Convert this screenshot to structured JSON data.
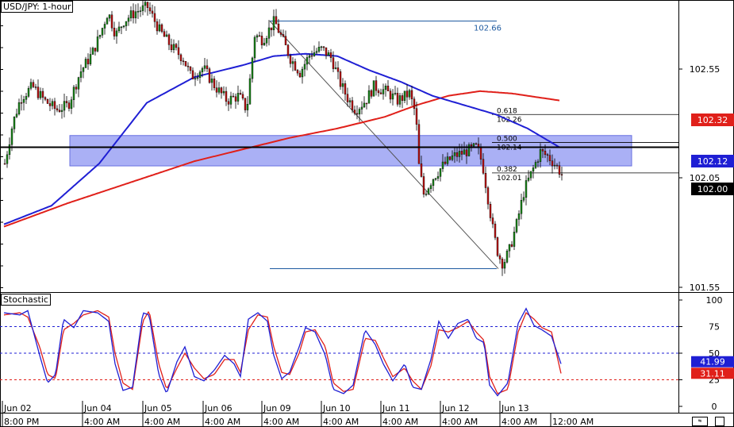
{
  "header": {
    "symbol_label": "USD/JPY: 1-hour"
  },
  "indicator": {
    "label": "Stochastic"
  },
  "colors": {
    "sma_blue": "#1f1fd4",
    "sma_red": "#e0201a",
    "zone_fill": "#aab0f5",
    "fib_line": "#1e5aa0",
    "stoch_k": "#1f1fd4",
    "stoch_d": "#e0201a",
    "level_75": "#1f1fd4",
    "level_50": "#1f1fd4",
    "level_25": "#e0201a",
    "badge_red": "#e0201a",
    "badge_blue": "#1f1fd4",
    "badge_black": "#000000"
  },
  "chart_data": [
    {
      "type": "candlestick",
      "title": "USD/JPY: 1-hour",
      "y_ticks": [
        "102.55",
        "102.05",
        "101.55"
      ],
      "ylim": [
        101.5,
        102.75
      ],
      "x_tick_labels": [
        "Jun 02",
        "Jun 04",
        "Jun 05",
        "Jun 06",
        "Jun 09",
        "Jun 10",
        "Jun 11",
        "Jun 12",
        "Jun 13"
      ],
      "x_tick_sublabels": [
        "8:00 PM",
        "4:00 AM",
        "4:00 AM",
        "4:00 AM",
        "4:00 AM",
        "4:00 AM",
        "4:00 AM",
        "4:00 AM",
        "4:00 AM",
        "12:00 AM"
      ],
      "sma_blue": [
        [
          0,
          101.79
        ],
        [
          60,
          101.87
        ],
        [
          120,
          102.05
        ],
        [
          180,
          102.31
        ],
        [
          240,
          102.42
        ],
        [
          300,
          102.47
        ],
        [
          340,
          102.51
        ],
        [
          380,
          102.52
        ],
        [
          420,
          102.51
        ],
        [
          460,
          102.45
        ],
        [
          500,
          102.4
        ],
        [
          540,
          102.34
        ],
        [
          580,
          102.3
        ],
        [
          620,
          102.26
        ],
        [
          660,
          102.2
        ],
        [
          700,
          102.12
        ]
      ],
      "sma_red": [
        [
          0,
          101.78
        ],
        [
          80,
          101.88
        ],
        [
          160,
          101.97
        ],
        [
          240,
          102.06
        ],
        [
          300,
          102.11
        ],
        [
          360,
          102.16
        ],
        [
          420,
          102.2
        ],
        [
          480,
          102.25
        ],
        [
          520,
          102.3
        ],
        [
          560,
          102.34
        ],
        [
          600,
          102.36
        ],
        [
          640,
          102.35
        ],
        [
          700,
          102.32
        ]
      ],
      "supply_zone": {
        "high": 102.17,
        "low": 102.04
      },
      "horizontal_line": 102.12,
      "fib": {
        "high": 102.66,
        "low": 101.6,
        "levels": [
          {
            "ratio": "0.618",
            "price": "102.26"
          },
          {
            "ratio": "0.500",
            "price": "102.14"
          },
          {
            "ratio": "0.382",
            "price": "102.01"
          }
        ]
      },
      "price_badges": [
        {
          "value": "102.32",
          "color": "red"
        },
        {
          "value": "102.12",
          "color": "blue"
        },
        {
          "value": "102.00",
          "color": "black"
        }
      ],
      "close_path": [
        [
          0,
          102.05
        ],
        [
          10,
          102.22
        ],
        [
          20,
          102.33
        ],
        [
          35,
          102.38
        ],
        [
          50,
          102.32
        ],
        [
          65,
          102.28
        ],
        [
          80,
          102.3
        ],
        [
          95,
          102.44
        ],
        [
          110,
          102.52
        ],
        [
          120,
          102.6
        ],
        [
          130,
          102.7
        ],
        [
          140,
          102.6
        ],
        [
          150,
          102.66
        ],
        [
          165,
          102.7
        ],
        [
          180,
          102.72
        ],
        [
          195,
          102.62
        ],
        [
          210,
          102.55
        ],
        [
          225,
          102.5
        ],
        [
          235,
          102.42
        ],
        [
          250,
          102.46
        ],
        [
          265,
          102.38
        ],
        [
          280,
          102.32
        ],
        [
          295,
          102.34
        ],
        [
          305,
          102.28
        ],
        [
          315,
          102.6
        ],
        [
          325,
          102.58
        ],
        [
          340,
          102.66
        ],
        [
          350,
          102.58
        ],
        [
          360,
          102.5
        ],
        [
          372,
          102.44
        ],
        [
          385,
          102.52
        ],
        [
          400,
          102.54
        ],
        [
          412,
          102.5
        ],
        [
          422,
          102.4
        ],
        [
          432,
          102.33
        ],
        [
          442,
          102.28
        ],
        [
          455,
          102.32
        ],
        [
          465,
          102.38
        ],
        [
          480,
          102.36
        ],
        [
          495,
          102.32
        ],
        [
          510,
          102.35
        ],
        [
          518,
          102.26
        ],
        [
          522,
          102.04
        ],
        [
          528,
          101.92
        ],
        [
          540,
          101.99
        ],
        [
          552,
          102.04
        ],
        [
          565,
          102.08
        ],
        [
          580,
          102.1
        ],
        [
          595,
          102.12
        ],
        [
          602,
          102.05
        ],
        [
          610,
          101.88
        ],
        [
          616,
          101.75
        ],
        [
          622,
          101.66
        ],
        [
          628,
          101.62
        ],
        [
          636,
          101.68
        ],
        [
          645,
          101.79
        ],
        [
          655,
          101.94
        ],
        [
          665,
          102.02
        ],
        [
          675,
          102.1
        ],
        [
          685,
          102.08
        ],
        [
          695,
          102.04
        ],
        [
          703,
          102.0
        ]
      ]
    },
    {
      "type": "line",
      "title": "Stochastic",
      "y_ticks": [
        "100",
        "75",
        "50",
        "25",
        "0"
      ],
      "ylim": [
        0,
        100
      ],
      "levels": [
        75,
        50,
        25
      ],
      "value_badges": [
        {
          "value": "41.99",
          "color": "blue"
        },
        {
          "value": "31.11",
          "color": "red"
        }
      ],
      "k_path": [
        [
          0,
          88
        ],
        [
          20,
          86
        ],
        [
          30,
          90
        ],
        [
          45,
          48
        ],
        [
          55,
          22
        ],
        [
          65,
          30
        ],
        [
          75,
          82
        ],
        [
          88,
          74
        ],
        [
          100,
          90
        ],
        [
          118,
          88
        ],
        [
          132,
          80
        ],
        [
          140,
          40
        ],
        [
          150,
          15
        ],
        [
          162,
          18
        ],
        [
          175,
          88
        ],
        [
          183,
          86
        ],
        [
          195,
          30
        ],
        [
          205,
          12
        ],
        [
          218,
          42
        ],
        [
          228,
          56
        ],
        [
          240,
          28
        ],
        [
          252,
          24
        ],
        [
          265,
          34
        ],
        [
          278,
          48
        ],
        [
          290,
          40
        ],
        [
          298,
          28
        ],
        [
          308,
          82
        ],
        [
          320,
          88
        ],
        [
          332,
          80
        ],
        [
          340,
          48
        ],
        [
          350,
          26
        ],
        [
          360,
          32
        ],
        [
          372,
          56
        ],
        [
          380,
          74
        ],
        [
          392,
          70
        ],
        [
          405,
          48
        ],
        [
          415,
          16
        ],
        [
          428,
          12
        ],
        [
          440,
          20
        ],
        [
          455,
          72
        ],
        [
          468,
          58
        ],
        [
          478,
          40
        ],
        [
          490,
          24
        ],
        [
          505,
          40
        ],
        [
          515,
          18
        ],
        [
          526,
          16
        ],
        [
          538,
          44
        ],
        [
          548,
          80
        ],
        [
          560,
          64
        ],
        [
          572,
          78
        ],
        [
          585,
          82
        ],
        [
          595,
          64
        ],
        [
          605,
          60
        ],
        [
          612,
          20
        ],
        [
          622,
          10
        ],
        [
          635,
          22
        ],
        [
          648,
          78
        ],
        [
          658,
          92
        ],
        [
          668,
          76
        ],
        [
          678,
          72
        ],
        [
          690,
          66
        ],
        [
          702,
          40
        ]
      ],
      "d_path": [
        [
          0,
          86
        ],
        [
          20,
          88
        ],
        [
          30,
          84
        ],
        [
          45,
          56
        ],
        [
          55,
          30
        ],
        [
          65,
          26
        ],
        [
          75,
          72
        ],
        [
          88,
          78
        ],
        [
          100,
          86
        ],
        [
          118,
          90
        ],
        [
          132,
          84
        ],
        [
          140,
          50
        ],
        [
          150,
          22
        ],
        [
          162,
          16
        ],
        [
          175,
          80
        ],
        [
          183,
          90
        ],
        [
          195,
          40
        ],
        [
          205,
          16
        ],
        [
          218,
          36
        ],
        [
          228,
          50
        ],
        [
          240,
          36
        ],
        [
          252,
          26
        ],
        [
          265,
          30
        ],
        [
          278,
          44
        ],
        [
          290,
          44
        ],
        [
          298,
          32
        ],
        [
          308,
          72
        ],
        [
          320,
          86
        ],
        [
          332,
          84
        ],
        [
          340,
          56
        ],
        [
          350,
          32
        ],
        [
          360,
          30
        ],
        [
          372,
          50
        ],
        [
          380,
          70
        ],
        [
          392,
          72
        ],
        [
          405,
          56
        ],
        [
          415,
          22
        ],
        [
          428,
          14
        ],
        [
          440,
          16
        ],
        [
          455,
          64
        ],
        [
          468,
          62
        ],
        [
          478,
          46
        ],
        [
          490,
          28
        ],
        [
          505,
          36
        ],
        [
          515,
          24
        ],
        [
          526,
          16
        ],
        [
          538,
          38
        ],
        [
          548,
          72
        ],
        [
          560,
          70
        ],
        [
          572,
          74
        ],
        [
          585,
          80
        ],
        [
          595,
          70
        ],
        [
          605,
          62
        ],
        [
          612,
          28
        ],
        [
          622,
          12
        ],
        [
          635,
          16
        ],
        [
          648,
          70
        ],
        [
          658,
          88
        ],
        [
          668,
          82
        ],
        [
          678,
          74
        ],
        [
          690,
          70
        ],
        [
          702,
          31
        ]
      ]
    }
  ]
}
